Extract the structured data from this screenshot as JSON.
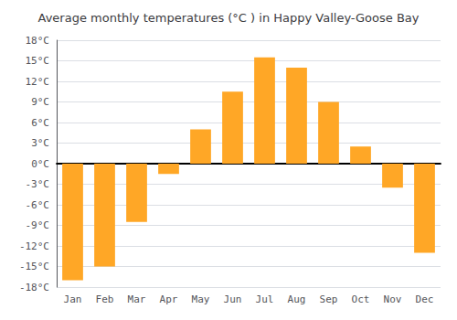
{
  "chart_data": {
    "type": "bar",
    "title": "Average monthly temperatures (°C ) in Happy Valley-Goose Bay",
    "categories": [
      "Jan",
      "Feb",
      "Mar",
      "Apr",
      "May",
      "Jun",
      "Jul",
      "Aug",
      "Sep",
      "Oct",
      "Nov",
      "Dec"
    ],
    "values": [
      -17,
      -15,
      -8.5,
      -1.5,
      5,
      10.5,
      15.5,
      14,
      9,
      2.5,
      -3.5,
      -13
    ],
    "color": "#FFA726",
    "ylim": [
      -18,
      18
    ],
    "yticks": [
      {
        "value": -18,
        "label": "-18°C"
      },
      {
        "value": -15,
        "label": "-15°C"
      },
      {
        "value": -12,
        "label": "-12°C"
      },
      {
        "value": -9,
        "label": "-9°C"
      },
      {
        "value": -6,
        "label": "-6°C"
      },
      {
        "value": -3,
        "label": "-3°C"
      },
      {
        "value": 0,
        "label": "0°C"
      },
      {
        "value": 3,
        "label": "3°C"
      },
      {
        "value": 6,
        "label": "6°C"
      },
      {
        "value": 9,
        "label": "9°C"
      },
      {
        "value": 12,
        "label": "12°C"
      },
      {
        "value": 15,
        "label": "15°C"
      },
      {
        "value": 18,
        "label": "18°C"
      }
    ],
    "grid": true
  }
}
